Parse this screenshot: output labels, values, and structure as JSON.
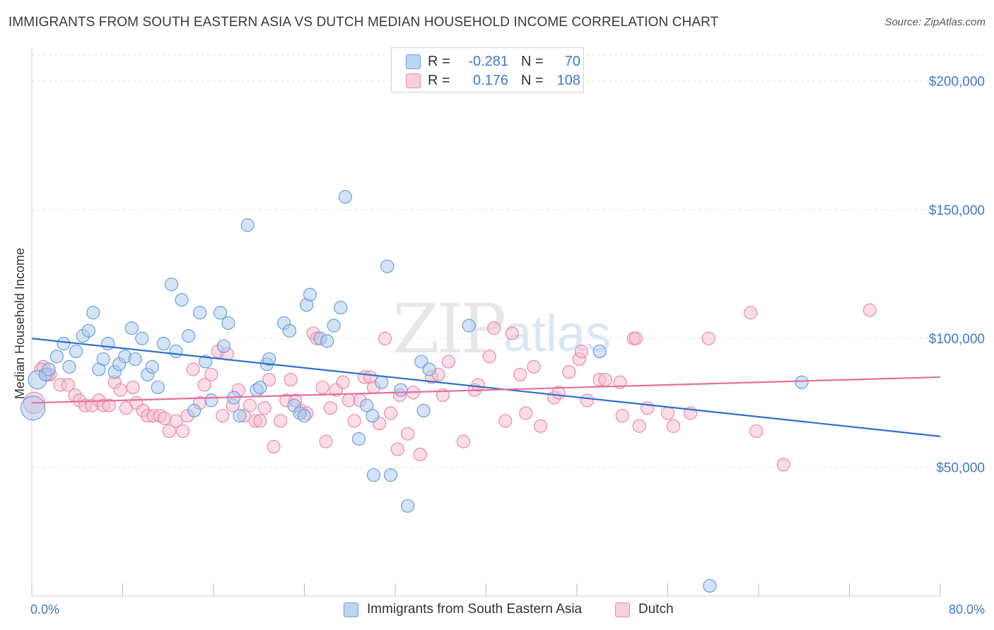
{
  "header": {
    "title": "IMMIGRANTS FROM SOUTH EASTERN ASIA VS DUTCH MEDIAN HOUSEHOLD INCOME CORRELATION CHART",
    "source": "Source: ZipAtlas.com"
  },
  "watermark": {
    "zip": "ZIP",
    "atlas": "atlas"
  },
  "legend": {
    "rows": [
      {
        "r_label": "R =",
        "r_value": "-0.281",
        "n_label": "N =",
        "n_value": "70"
      },
      {
        "r_label": "R =",
        "r_value": "0.176",
        "n_label": "N =",
        "n_value": "108"
      }
    ]
  },
  "colors": {
    "blue_fill": "#a9c9ee",
    "blue_stroke": "#6a9fdc",
    "blue_line": "#2f6fcf",
    "pink_fill": "#f6bcd0",
    "pink_stroke": "#e889ab",
    "pink_line": "#e5709a",
    "axis_text": "#3f79c8",
    "grid": "#e2e2e2"
  },
  "chart_data": {
    "type": "scatter",
    "title": "IMMIGRANTS FROM SOUTH EASTERN ASIA VS DUTCH MEDIAN HOUSEHOLD INCOME CORRELATION CHART",
    "xlabel": "",
    "ylabel": "Median Household Income",
    "xlim": [
      0,
      80
    ],
    "ylim": [
      0,
      210000
    ],
    "x_ticks": [
      "0.0%",
      "80.0%"
    ],
    "y_ticks": [
      {
        "value": 50000,
        "label": "$50,000"
      },
      {
        "value": 100000,
        "label": "$100,000"
      },
      {
        "value": 150000,
        "label": "$150,000"
      },
      {
        "value": 200000,
        "label": "$200,000"
      }
    ],
    "grid": "horizontal dashed",
    "legend_position": "top-center",
    "series": [
      {
        "name": "Immigrants from South Eastern Asia",
        "color": "#6a9fdc",
        "trend": {
          "x0": 0,
          "y0": 100000,
          "x1": 80,
          "y1": 62000
        },
        "points": [
          [
            0.1,
            73000
          ],
          [
            0.5,
            84000
          ],
          [
            1.2,
            86000
          ],
          [
            1.5,
            88000
          ],
          [
            2.2,
            93000
          ],
          [
            2.8,
            98000
          ],
          [
            3.3,
            89000
          ],
          [
            3.9,
            95000
          ],
          [
            4.5,
            101000
          ],
          [
            5.0,
            103000
          ],
          [
            5.4,
            110000
          ],
          [
            5.9,
            88000
          ],
          [
            6.3,
            92000
          ],
          [
            6.7,
            98000
          ],
          [
            7.3,
            87000
          ],
          [
            7.7,
            90000
          ],
          [
            8.2,
            93000
          ],
          [
            8.8,
            104000
          ],
          [
            9.1,
            92000
          ],
          [
            9.7,
            100000
          ],
          [
            10.2,
            86000
          ],
          [
            10.6,
            89000
          ],
          [
            11.1,
            81000
          ],
          [
            11.6,
            98000
          ],
          [
            12.3,
            121000
          ],
          [
            12.7,
            95000
          ],
          [
            13.2,
            115000
          ],
          [
            13.8,
            101000
          ],
          [
            14.3,
            72000
          ],
          [
            14.8,
            110000
          ],
          [
            15.3,
            91000
          ],
          [
            15.8,
            76000
          ],
          [
            16.6,
            110000
          ],
          [
            16.9,
            97000
          ],
          [
            17.3,
            106000
          ],
          [
            17.8,
            77000
          ],
          [
            18.3,
            70000
          ],
          [
            19.0,
            144000
          ],
          [
            19.8,
            80000
          ],
          [
            20.1,
            81000
          ],
          [
            20.7,
            90000
          ],
          [
            20.9,
            92000
          ],
          [
            22.2,
            106000
          ],
          [
            22.7,
            103000
          ],
          [
            23.1,
            74000
          ],
          [
            23.6,
            71000
          ],
          [
            24.0,
            70000
          ],
          [
            24.2,
            113000
          ],
          [
            24.5,
            117000
          ],
          [
            25.4,
            100000
          ],
          [
            26.0,
            99000
          ],
          [
            26.6,
            105000
          ],
          [
            27.2,
            112000
          ],
          [
            27.6,
            155000
          ],
          [
            28.8,
            61000
          ],
          [
            29.5,
            74000
          ],
          [
            30.0,
            70000
          ],
          [
            30.1,
            47000
          ],
          [
            30.8,
            83000
          ],
          [
            31.3,
            128000
          ],
          [
            31.6,
            47000
          ],
          [
            32.5,
            80000
          ],
          [
            33.1,
            35000
          ],
          [
            34.3,
            91000
          ],
          [
            34.5,
            72000
          ],
          [
            35.0,
            88000
          ],
          [
            38.5,
            105000
          ],
          [
            50.0,
            95000
          ],
          [
            59.7,
            4000
          ],
          [
            67.8,
            83000
          ]
        ]
      },
      {
        "name": "Dutch",
        "color": "#e889ab",
        "trend": {
          "x0": 0,
          "y0": 75000,
          "x1": 80,
          "y1": 85000
        },
        "points": [
          [
            0.2,
            75000
          ],
          [
            1.0,
            89000
          ],
          [
            1.6,
            86000
          ],
          [
            2.5,
            82000
          ],
          [
            3.2,
            82000
          ],
          [
            3.8,
            78000
          ],
          [
            4.2,
            76000
          ],
          [
            4.7,
            74000
          ],
          [
            5.3,
            74000
          ],
          [
            5.9,
            76000
          ],
          [
            6.3,
            74000
          ],
          [
            6.8,
            74000
          ],
          [
            7.3,
            83000
          ],
          [
            7.8,
            80000
          ],
          [
            8.3,
            73000
          ],
          [
            8.9,
            81000
          ],
          [
            9.2,
            75000
          ],
          [
            9.8,
            72000
          ],
          [
            10.2,
            70000
          ],
          [
            10.7,
            70000
          ],
          [
            11.3,
            70000
          ],
          [
            11.7,
            69000
          ],
          [
            12.1,
            64000
          ],
          [
            12.7,
            68000
          ],
          [
            13.3,
            64000
          ],
          [
            13.7,
            70000
          ],
          [
            14.2,
            88000
          ],
          [
            14.8,
            75000
          ],
          [
            15.2,
            82000
          ],
          [
            15.8,
            86000
          ],
          [
            16.4,
            95000
          ],
          [
            16.8,
            70000
          ],
          [
            17.2,
            94000
          ],
          [
            17.7,
            74000
          ],
          [
            18.2,
            80000
          ],
          [
            18.7,
            70000
          ],
          [
            19.2,
            74000
          ],
          [
            19.7,
            68000
          ],
          [
            20.1,
            68000
          ],
          [
            20.5,
            73000
          ],
          [
            20.9,
            84000
          ],
          [
            21.3,
            58000
          ],
          [
            21.9,
            68000
          ],
          [
            22.4,
            76000
          ],
          [
            22.8,
            84000
          ],
          [
            23.2,
            76000
          ],
          [
            23.7,
            72000
          ],
          [
            24.2,
            71000
          ],
          [
            24.8,
            102000
          ],
          [
            25.1,
            100000
          ],
          [
            25.6,
            81000
          ],
          [
            25.9,
            60000
          ],
          [
            26.3,
            73000
          ],
          [
            26.8,
            80000
          ],
          [
            27.4,
            83000
          ],
          [
            27.9,
            76000
          ],
          [
            28.4,
            68000
          ],
          [
            28.9,
            76000
          ],
          [
            29.3,
            85000
          ],
          [
            29.8,
            85000
          ],
          [
            30.1,
            81000
          ],
          [
            30.6,
            67000
          ],
          [
            31.1,
            100000
          ],
          [
            31.6,
            71000
          ],
          [
            32.2,
            57000
          ],
          [
            32.4,
            78000
          ],
          [
            33.1,
            63000
          ],
          [
            33.6,
            79000
          ],
          [
            34.2,
            55000
          ],
          [
            35.2,
            85000
          ],
          [
            35.8,
            86000
          ],
          [
            36.2,
            78000
          ],
          [
            36.7,
            91000
          ],
          [
            38.0,
            60000
          ],
          [
            39.0,
            80000
          ],
          [
            39.3,
            82000
          ],
          [
            40.3,
            93000
          ],
          [
            40.7,
            104000
          ],
          [
            41.7,
            68000
          ],
          [
            42.3,
            102000
          ],
          [
            43.0,
            86000
          ],
          [
            43.5,
            71000
          ],
          [
            44.2,
            89000
          ],
          [
            44.8,
            66000
          ],
          [
            46.0,
            77000
          ],
          [
            46.4,
            79000
          ],
          [
            47.3,
            87000
          ],
          [
            48.2,
            92000
          ],
          [
            48.4,
            95000
          ],
          [
            48.9,
            76000
          ],
          [
            50.0,
            84000
          ],
          [
            50.5,
            84000
          ],
          [
            51.8,
            83000
          ],
          [
            52.0,
            70000
          ],
          [
            53.0,
            100000
          ],
          [
            53.2,
            100000
          ],
          [
            53.5,
            66000
          ],
          [
            54.2,
            73000
          ],
          [
            56.0,
            71000
          ],
          [
            56.5,
            66000
          ],
          [
            58.0,
            71000
          ],
          [
            59.6,
            100000
          ],
          [
            63.3,
            110000
          ],
          [
            63.8,
            64000
          ],
          [
            66.2,
            51000
          ],
          [
            73.8,
            111000
          ],
          [
            0.8,
            88000
          ],
          [
            1.4,
            86000
          ]
        ]
      }
    ]
  }
}
